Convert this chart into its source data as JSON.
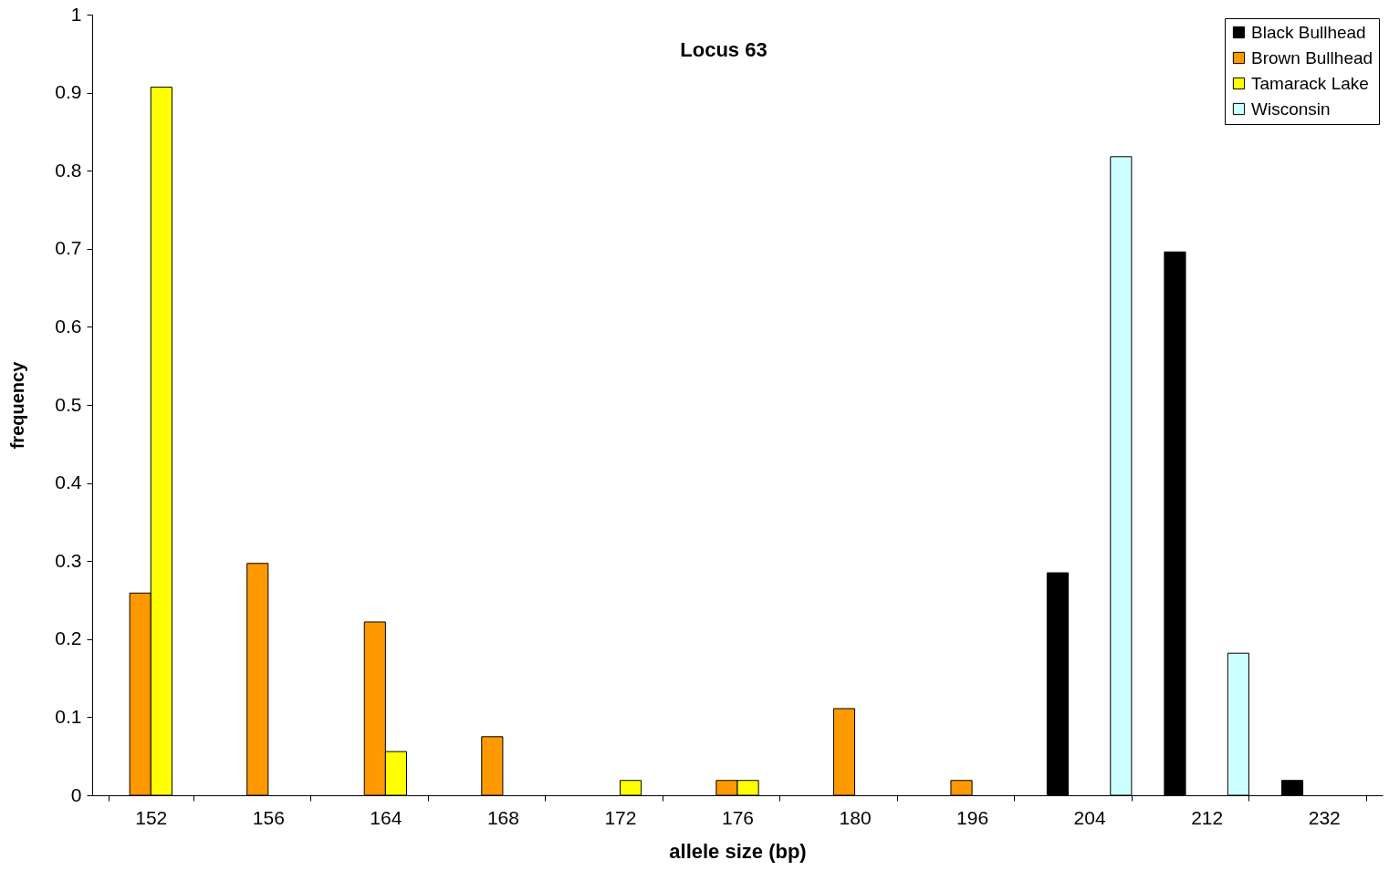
{
  "chart_data": {
    "type": "bar",
    "title": "Locus 63",
    "xlabel": "allele size (bp)",
    "ylabel": "frequency",
    "categories": [
      "152",
      "156",
      "164",
      "168",
      "172",
      "176",
      "180",
      "196",
      "204",
      "212",
      "232"
    ],
    "series": [
      {
        "name": "Black Bullhead",
        "color": "#000000",
        "values": [
          null,
          null,
          null,
          null,
          null,
          null,
          null,
          null,
          0.285,
          0.696,
          0.019
        ]
      },
      {
        "name": "Brown Bullhead",
        "color": "#ff9900",
        "values": [
          0.259,
          0.297,
          0.222,
          0.075,
          null,
          0.019,
          0.111,
          0.019,
          null,
          null,
          null
        ]
      },
      {
        "name": "Tamarack Lake",
        "color": "#ffff00",
        "values": [
          0.907,
          null,
          0.056,
          null,
          0.019,
          0.019,
          null,
          null,
          null,
          null,
          null
        ]
      },
      {
        "name": "Wisconsin",
        "color": "#ccffff",
        "values": [
          null,
          null,
          null,
          null,
          null,
          null,
          null,
          null,
          0.818,
          0.182,
          null
        ]
      }
    ],
    "ylim": [
      0,
      1
    ],
    "yticks": [
      0,
      0.1,
      0.2,
      0.3,
      0.4,
      0.5,
      0.6,
      0.7,
      0.8,
      0.9,
      1
    ],
    "grid": false,
    "legend": "top right"
  }
}
